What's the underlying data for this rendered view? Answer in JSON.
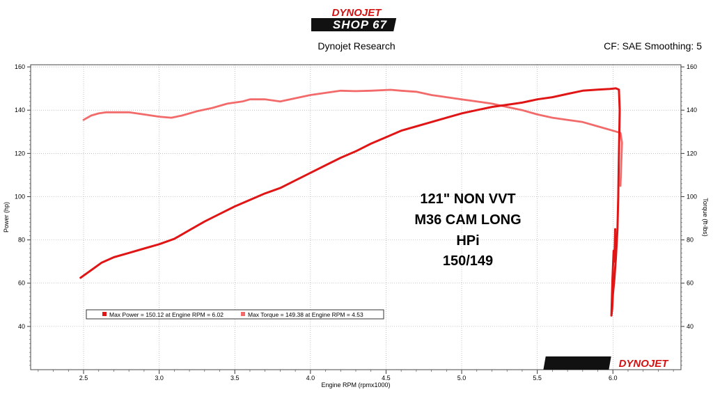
{
  "header": {
    "logo_top": "DYNOJET",
    "logo_bottom": "SHOP 67",
    "subtitle": "Dynojet Research",
    "settings": "CF: SAE Smoothing: 5"
  },
  "watermark": "DYNOJET",
  "colors": {
    "power": "#e01515",
    "torque": "#f26a6a",
    "grid": "#9a9a9a"
  },
  "chart_data": {
    "type": "line",
    "xlabel": "Engine RPM (rpmx1000)",
    "ylabel_left": "Power (hp)",
    "ylabel_right": "Torque (ft-lbs)",
    "xlim": [
      2.15,
      6.45
    ],
    "ylim": [
      20,
      161
    ],
    "x_ticks": [
      2.5,
      3.0,
      3.5,
      4.0,
      4.5,
      5.0,
      5.5,
      6.0
    ],
    "x_tick_labels": [
      "2.5",
      "3.0",
      "3.5",
      "4.0",
      "4.5",
      "5.0",
      "5.5",
      "6.0"
    ],
    "y_ticks": [
      40,
      60,
      80,
      100,
      120,
      140,
      160
    ],
    "y_tick_labels": [
      "40",
      "60",
      "80",
      "100",
      "120",
      "140",
      "160"
    ],
    "grid": true,
    "annotation": [
      "121\" NON VVT",
      "M36 CAM LONG",
      "HPi",
      "150/149"
    ],
    "legend": [
      "Max Power = 150.12 at Engine RPM = 6.02",
      "Max Torque = 149.38 at Engine RPM = 4.53"
    ],
    "series": [
      {
        "name": "Power",
        "points": [
          [
            2.48,
            62.5
          ],
          [
            2.55,
            66
          ],
          [
            2.62,
            69.5
          ],
          [
            2.7,
            72
          ],
          [
            2.8,
            74
          ],
          [
            2.9,
            76
          ],
          [
            3.0,
            78
          ],
          [
            3.1,
            80.5
          ],
          [
            3.2,
            84.5
          ],
          [
            3.3,
            88.5
          ],
          [
            3.4,
            92
          ],
          [
            3.5,
            95.5
          ],
          [
            3.6,
            98.5
          ],
          [
            3.7,
            101.5
          ],
          [
            3.8,
            104
          ],
          [
            3.9,
            107.5
          ],
          [
            4.0,
            111
          ],
          [
            4.1,
            114.5
          ],
          [
            4.2,
            118
          ],
          [
            4.3,
            121
          ],
          [
            4.4,
            124.5
          ],
          [
            4.5,
            127.5
          ],
          [
            4.6,
            130.5
          ],
          [
            4.7,
            132.5
          ],
          [
            4.8,
            134.5
          ],
          [
            4.9,
            136.5
          ],
          [
            5.0,
            138.5
          ],
          [
            5.1,
            140
          ],
          [
            5.2,
            141.5
          ],
          [
            5.3,
            142.5
          ],
          [
            5.4,
            143.5
          ],
          [
            5.5,
            145
          ],
          [
            5.6,
            146
          ],
          [
            5.7,
            147.5
          ],
          [
            5.8,
            149
          ],
          [
            5.9,
            149.5
          ],
          [
            5.98,
            149.8
          ],
          [
            6.02,
            150.1
          ],
          [
            6.04,
            149.5
          ],
          [
            6.045,
            140
          ],
          [
            6.04,
            120
          ],
          [
            6.035,
            100
          ],
          [
            6.03,
            85
          ],
          [
            6.02,
            72
          ],
          [
            6.01,
            62
          ],
          [
            6.0,
            55
          ],
          [
            5.995,
            48
          ],
          [
            5.99,
            45
          ],
          [
            5.997,
            62
          ],
          [
            6.005,
            75
          ],
          [
            6.01,
            70
          ],
          [
            6.015,
            85
          ]
        ]
      },
      {
        "name": "Torque",
        "points": [
          [
            2.5,
            135.5
          ],
          [
            2.55,
            137.5
          ],
          [
            2.6,
            138.5
          ],
          [
            2.65,
            139
          ],
          [
            2.7,
            139
          ],
          [
            2.8,
            139
          ],
          [
            2.9,
            138
          ],
          [
            3.0,
            137
          ],
          [
            3.08,
            136.5
          ],
          [
            3.15,
            137.5
          ],
          [
            3.25,
            139.5
          ],
          [
            3.35,
            141
          ],
          [
            3.45,
            143
          ],
          [
            3.55,
            144
          ],
          [
            3.6,
            145
          ],
          [
            3.7,
            145
          ],
          [
            3.8,
            144
          ],
          [
            3.9,
            145.5
          ],
          [
            4.0,
            147
          ],
          [
            4.1,
            148
          ],
          [
            4.2,
            149
          ],
          [
            4.3,
            148.8
          ],
          [
            4.4,
            149
          ],
          [
            4.53,
            149.4
          ],
          [
            4.6,
            149
          ],
          [
            4.7,
            148.5
          ],
          [
            4.8,
            147
          ],
          [
            4.9,
            146
          ],
          [
            5.0,
            145
          ],
          [
            5.1,
            144
          ],
          [
            5.2,
            143
          ],
          [
            5.3,
            141.5
          ],
          [
            5.4,
            140
          ],
          [
            5.5,
            138
          ],
          [
            5.6,
            136.5
          ],
          [
            5.7,
            135.5
          ],
          [
            5.8,
            134.5
          ],
          [
            5.9,
            132.5
          ],
          [
            6.0,
            130.5
          ],
          [
            6.05,
            129.5
          ],
          [
            6.06,
            125
          ],
          [
            6.055,
            115
          ],
          [
            6.05,
            105
          ]
        ]
      }
    ]
  }
}
